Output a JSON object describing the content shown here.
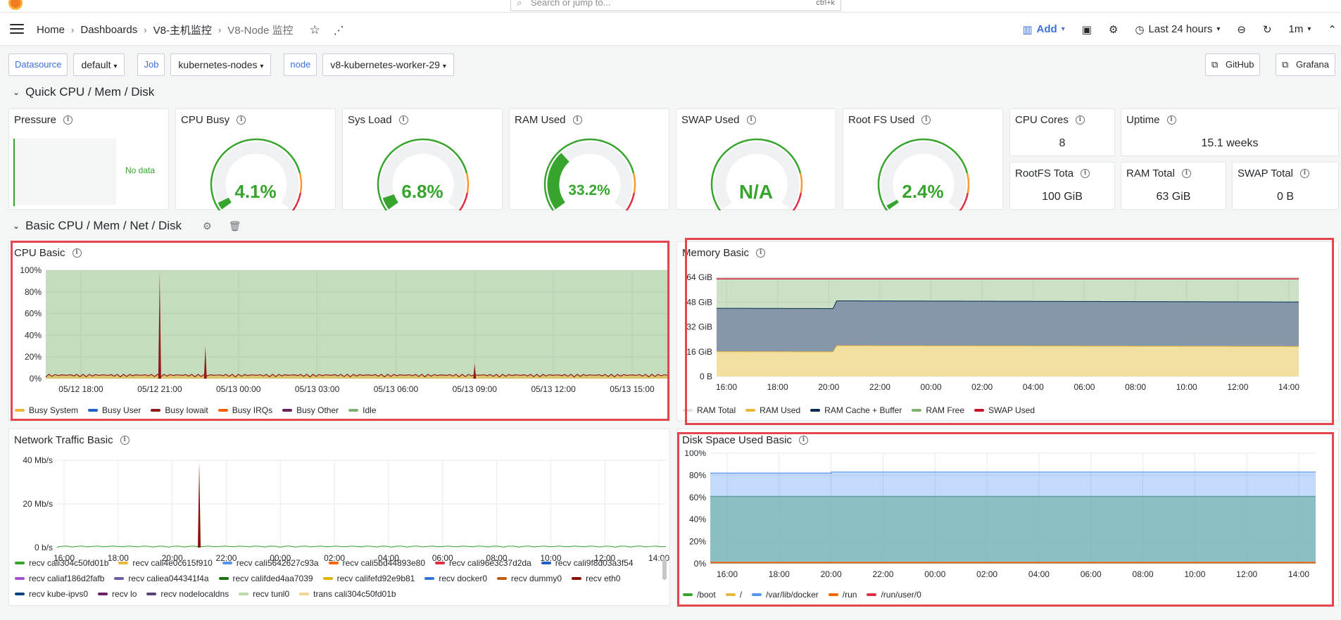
{
  "topbar": {
    "search_placeholder": "Search or jump to...",
    "search_shortcut": "ctrl+k"
  },
  "nav": {
    "breadcrumbs": [
      "Home",
      "Dashboards",
      "V8-主机监控",
      "V8-Node 监控"
    ],
    "add_label": "Add",
    "time_range": "Last 24 hours",
    "refresh_interval": "1m"
  },
  "variables": [
    {
      "label": "Datasource",
      "value": "default"
    },
    {
      "label": "Job",
      "value": "kubernetes-nodes"
    },
    {
      "label": "node",
      "value": "v8-kubernetes-worker-29"
    }
  ],
  "links": {
    "github": "GitHub",
    "grafana": "Grafana"
  },
  "rows": {
    "quick": "Quick CPU / Mem / Disk",
    "basic": "Basic CPU / Mem / Net / Disk"
  },
  "stats": {
    "pressure": {
      "title": "Pressure",
      "value": "No data"
    },
    "cpu_busy": {
      "title": "CPU Busy",
      "value": "4.1%",
      "fraction": 0.041
    },
    "sys_load": {
      "title": "Sys Load",
      "value": "6.8%",
      "fraction": 0.068
    },
    "ram_used": {
      "title": "RAM Used",
      "value": "33.2%",
      "fraction": 0.332
    },
    "swap_used": {
      "title": "SWAP Used",
      "value": "N/A"
    },
    "root_fs_used": {
      "title": "Root FS Used",
      "value": "2.4%",
      "fraction": 0.024
    },
    "cpu_cores": {
      "title": "CPU Cores",
      "value": "8"
    },
    "uptime": {
      "title": "Uptime",
      "value": "15.1 weeks"
    },
    "rootfs_total": {
      "title": "RootFS Tota",
      "value": "100 GiB"
    },
    "ram_total": {
      "title": "RAM Total",
      "value": "63 GiB"
    },
    "swap_total": {
      "title": "SWAP Total",
      "value": "0 B"
    }
  },
  "colors": {
    "green": "#37a52d",
    "orange": "#ff9830",
    "red": "#e02f44",
    "highlight": "#e5454c",
    "link": "#3d71d9"
  },
  "panels": {
    "cpu_basic": {
      "title": "CPU Basic",
      "chart_data": {
        "type": "area",
        "x": [
          "05/12 18:00",
          "05/12 21:00",
          "05/13 00:00",
          "05/13 03:00",
          "05/13 06:00",
          "05/13 09:00",
          "05/13 12:00",
          "05/13 15:00"
        ],
        "y_ticks": [
          "0%",
          "20%",
          "40%",
          "60%",
          "80%",
          "100%"
        ],
        "ylim": [
          0,
          100
        ],
        "series": [
          {
            "name": "Busy System",
            "color": "#eab839"
          },
          {
            "name": "Busy User",
            "color": "#1f60c4"
          },
          {
            "name": "Busy Iowait",
            "color": "#8f1a1a"
          },
          {
            "name": "Busy IRQs",
            "color": "#fa6400"
          },
          {
            "name": "Busy Other",
            "color": "#6e1f5e"
          },
          {
            "name": "Idle",
            "color": "#7eb26d"
          }
        ],
        "spikes": [
          {
            "x": "05/12 21:00",
            "value": 97
          },
          {
            "x": "05/12 22:45",
            "value": 30
          },
          {
            "x": "05/13 09:00",
            "value": 14
          }
        ]
      }
    },
    "memory_basic": {
      "title": "Memory Basic",
      "chart_data": {
        "type": "area",
        "x": [
          "16:00",
          "18:00",
          "20:00",
          "22:00",
          "00:00",
          "02:00",
          "04:00",
          "06:00",
          "08:00",
          "10:00",
          "12:00",
          "14:00"
        ],
        "y_ticks": [
          "0 B",
          "16 GiB",
          "32 GiB",
          "48 GiB",
          "64 GiB"
        ],
        "ylim": [
          0,
          64
        ],
        "series": [
          {
            "name": "RAM Total",
            "color": "#e0e0e0"
          },
          {
            "name": "RAM Used",
            "color": "#eab839"
          },
          {
            "name": "RAM Cache + Buffer",
            "color": "#052b51"
          },
          {
            "name": "RAM Free",
            "color": "#7eb26d"
          },
          {
            "name": "SWAP Used",
            "color": "#c4162a"
          }
        ]
      }
    },
    "network_basic": {
      "title": "Network Traffic Basic",
      "chart_data": {
        "type": "line",
        "x": [
          "16:00",
          "18:00",
          "20:00",
          "22:00",
          "00:00",
          "02:00",
          "04:00",
          "06:00",
          "08:00",
          "10:00",
          "12:00",
          "14:00"
        ],
        "y_ticks": [
          "0 b/s",
          "20 Mb/s",
          "40 Mb/s"
        ],
        "series": [
          {
            "name": "recv cali304c50fd01b",
            "color": "#37a52d"
          },
          {
            "name": "recv cali4e0c615f910",
            "color": "#eab839"
          },
          {
            "name": "recv cali5642627c93a",
            "color": "#5794f2"
          },
          {
            "name": "recv cali5bd44893e80",
            "color": "#fa6400"
          },
          {
            "name": "recv cali96e3c37d2da",
            "color": "#e02f44"
          },
          {
            "name": "recv cali9f8d03a3f54",
            "color": "#1f60c4"
          },
          {
            "name": "recv caliaf186d2fafb",
            "color": "#a352cc"
          },
          {
            "name": "recv caliea044341f4a",
            "color": "#705da0"
          },
          {
            "name": "recv califded4aa7039",
            "color": "#19730e"
          },
          {
            "name": "recv califefd92e9b81",
            "color": "#e0b400"
          },
          {
            "name": "recv docker0",
            "color": "#3274d9"
          },
          {
            "name": "recv dummy0",
            "color": "#c15c17"
          },
          {
            "name": "recv eth0",
            "color": "#890f02"
          },
          {
            "name": "recv kube-ipvs0",
            "color": "#0a437c"
          },
          {
            "name": "recv lo",
            "color": "#6d1f62"
          },
          {
            "name": "recv nodelocaldns",
            "color": "#584477"
          },
          {
            "name": "recv tunl0",
            "color": "#b7dbab"
          },
          {
            "name": "trans cali304c50fd01b",
            "color": "#f4d598"
          }
        ]
      }
    },
    "disk_basic": {
      "title": "Disk Space Used Basic",
      "chart_data": {
        "type": "area",
        "x": [
          "16:00",
          "18:00",
          "20:00",
          "22:00",
          "00:00",
          "02:00",
          "04:00",
          "06:00",
          "08:00",
          "10:00",
          "12:00",
          "14:00"
        ],
        "y_ticks": [
          "0%",
          "20%",
          "40%",
          "60%",
          "80%",
          "100%"
        ],
        "ylim": [
          0,
          100
        ],
        "series": [
          {
            "name": "/boot",
            "color": "#37a52d"
          },
          {
            "name": "/",
            "color": "#eab839"
          },
          {
            "name": "/var/lib/docker",
            "color": "#5794f2"
          },
          {
            "name": "/run",
            "color": "#fa6400"
          },
          {
            "name": "/run/user/0",
            "color": "#e02f44"
          }
        ]
      }
    }
  }
}
